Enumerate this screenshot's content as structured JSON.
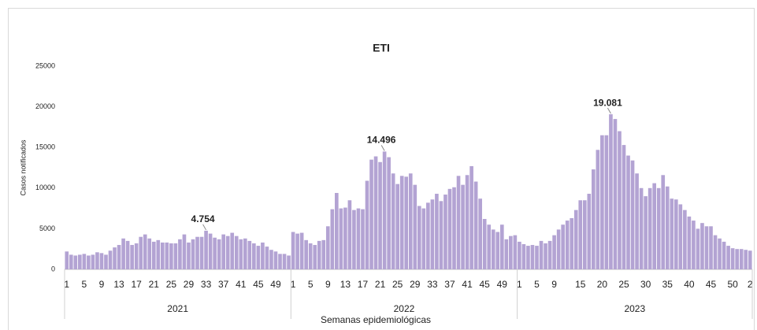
{
  "chart_data": {
    "type": "bar",
    "title": "ETI",
    "ylabel": "Casos notificados",
    "xlabel": "Semanas epidemiológicas",
    "color": "#b3a3d3",
    "ylim": [
      0,
      25000
    ],
    "yticks": [
      0,
      5000,
      10000,
      15000,
      20000,
      25000
    ],
    "groups": [
      {
        "label": "2021",
        "categories": [
          "1",
          null,
          null,
          null,
          "5",
          null,
          null,
          null,
          "9",
          null,
          null,
          null,
          "13",
          null,
          null,
          null,
          "17",
          null,
          null,
          null,
          "21",
          null,
          null,
          null,
          "25",
          null,
          null,
          null,
          "29",
          null,
          null,
          null,
          "33",
          null,
          null,
          null,
          "37",
          null,
          null,
          null,
          "41",
          null,
          null,
          null,
          "45",
          null,
          null,
          null,
          "49",
          null,
          null,
          null
        ],
        "values": [
          2200,
          1800,
          1700,
          1800,
          1900,
          1700,
          1800,
          2100,
          2000,
          1800,
          2300,
          2700,
          3000,
          3800,
          3500,
          3000,
          3200,
          4000,
          4300,
          3800,
          3400,
          3600,
          3300,
          3300,
          3200,
          3200,
          3700,
          4300,
          3300,
          3700,
          4000,
          4000,
          4754,
          4400,
          3900,
          3700,
          4300,
          4100,
          4500,
          4100,
          3700,
          3800,
          3500,
          3200,
          2900,
          3300,
          2800,
          2400,
          2200,
          1900,
          1900,
          1700
        ],
        "value_labels": [
          null,
          null,
          null,
          null,
          null,
          null,
          null,
          null,
          null,
          null,
          null,
          null,
          null,
          null,
          null,
          null,
          null,
          null,
          null,
          null,
          null,
          null,
          null,
          null,
          null,
          null,
          null,
          null,
          null,
          null,
          null,
          null,
          "4.754",
          null,
          null,
          null,
          null,
          null,
          null,
          null,
          null,
          null,
          null,
          null,
          null,
          null,
          null,
          null,
          null,
          null,
          null,
          null
        ]
      },
      {
        "label": "2022",
        "categories": [
          "1",
          null,
          null,
          null,
          "5",
          null,
          null,
          null,
          "9",
          null,
          null,
          null,
          "13",
          null,
          null,
          null,
          "17",
          null,
          null,
          null,
          "21",
          null,
          null,
          null,
          "25",
          null,
          null,
          null,
          "29",
          null,
          null,
          null,
          "33",
          null,
          null,
          null,
          "37",
          null,
          null,
          null,
          "41",
          null,
          null,
          null,
          "45",
          null,
          null,
          null,
          "49",
          null,
          null,
          null
        ],
        "values": [
          4600,
          4400,
          4500,
          3600,
          3200,
          3000,
          3500,
          3600,
          5300,
          7400,
          9400,
          7500,
          7600,
          8500,
          7300,
          7500,
          7400,
          10900,
          13500,
          13900,
          13200,
          14496,
          13800,
          11800,
          10500,
          11500,
          11400,
          11800,
          10400,
          7800,
          7500,
          8200,
          8600,
          9300,
          8400,
          9200,
          9900,
          10100,
          11500,
          10400,
          11600,
          12700,
          10800,
          8700,
          6200,
          5500,
          4900,
          4600,
          5500,
          3700,
          4100,
          4200
        ],
        "value_labels": [
          null,
          null,
          null,
          null,
          null,
          null,
          null,
          null,
          null,
          null,
          null,
          null,
          null,
          null,
          null,
          null,
          null,
          null,
          null,
          null,
          null,
          "14.496",
          null,
          null,
          null,
          null,
          null,
          null,
          null,
          null,
          null,
          null,
          null,
          null,
          null,
          null,
          null,
          null,
          null,
          null,
          null,
          null,
          null,
          null,
          null,
          null,
          null,
          null,
          null,
          null,
          null,
          null
        ]
      },
      {
        "label": "2023",
        "categories": [
          "1",
          null,
          null,
          null,
          "5",
          null,
          null,
          null,
          "9",
          null,
          null,
          null,
          null,
          null,
          "15",
          null,
          null,
          null,
          null,
          "20",
          null,
          null,
          null,
          null,
          "25",
          null,
          null,
          null,
          null,
          "30",
          null,
          null,
          null,
          null,
          "35",
          null,
          null,
          null,
          null,
          "40",
          null,
          null,
          null,
          null,
          "45",
          null,
          null,
          null,
          null,
          "50",
          null,
          null,
          null,
          "2"
        ],
        "values": [
          3400,
          3100,
          2900,
          3000,
          2900,
          3500,
          3200,
          3500,
          4200,
          4900,
          5500,
          6000,
          6300,
          7300,
          8500,
          8500,
          9300,
          12300,
          14700,
          16500,
          16500,
          19081,
          18500,
          17000,
          15300,
          14000,
          13400,
          11800,
          10000,
          9000,
          10000,
          10600,
          10000,
          11600,
          10200,
          8700,
          8600,
          8000,
          7300,
          6500,
          6000,
          5000,
          5700,
          5300,
          5300,
          4200,
          3800,
          3400,
          2900,
          2600,
          2500,
          2500,
          2400,
          2300
        ],
        "value_labels": [
          null,
          null,
          null,
          null,
          null,
          null,
          null,
          null,
          null,
          null,
          null,
          null,
          null,
          null,
          null,
          null,
          null,
          null,
          null,
          null,
          null,
          "19.081",
          null,
          null,
          null,
          null,
          null,
          null,
          null,
          null,
          null,
          null,
          null,
          null,
          null,
          null,
          null,
          null,
          null,
          null,
          null,
          null,
          null,
          null,
          null,
          null,
          null,
          null,
          null,
          null,
          null,
          null,
          null,
          null
        ]
      }
    ]
  }
}
